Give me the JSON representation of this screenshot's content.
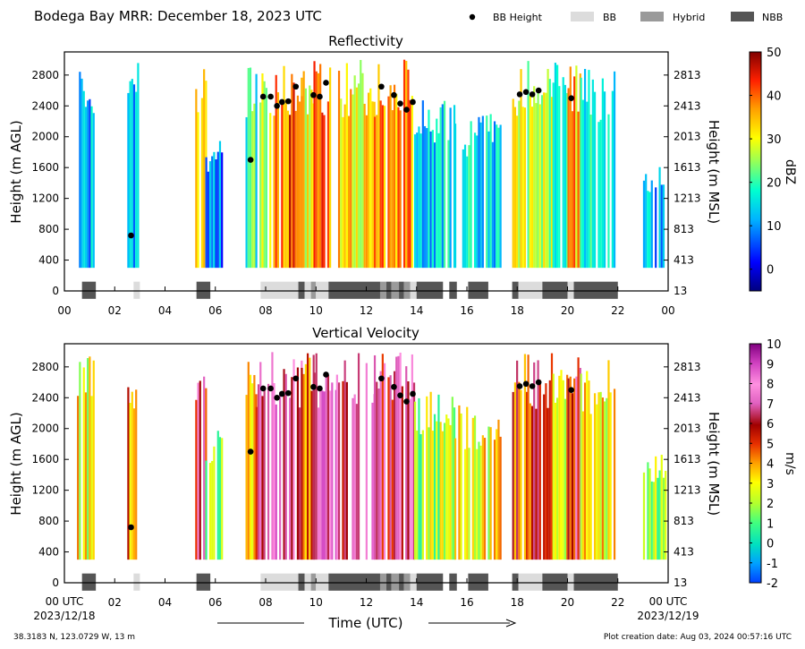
{
  "figure": {
    "title": "Bodega Bay MRR:  December 18, 2023 UTC",
    "legend": [
      {
        "label": "BB Height",
        "kind": "dot",
        "color": "#000000"
      },
      {
        "label": "BB",
        "kind": "box",
        "color": "#dcdcdc"
      },
      {
        "label": "Hybrid",
        "kind": "box",
        "color": "#9a9a9a"
      },
      {
        "label": "NBB",
        "kind": "box",
        "color": "#555555"
      }
    ],
    "xlabel": "Time (UTC)",
    "x_start_line1": "00 UTC",
    "x_start_line2": "2023/12/18",
    "x_end_line1": "00 UTC",
    "x_end_line2": "2023/12/19",
    "footer_left": "38.3183 N, 123.0729 W, 13 m",
    "footer_right": "Plot creation date: Aug 03, 2024 00:57:16 UTC"
  },
  "chart_data": [
    {
      "type": "heatmap",
      "title": "Reflectivity",
      "ylabel": "Height (m AGL)",
      "ylabel_right": "Height (m MSL)",
      "xlim": [
        0,
        24
      ],
      "ylim": [
        0,
        3100
      ],
      "x_ticks": [
        "00",
        "02",
        "04",
        "06",
        "08",
        "10",
        "12",
        "14",
        "16",
        "18",
        "20",
        "22",
        "00"
      ],
      "y_ticks_left": [
        0,
        400,
        800,
        1200,
        1600,
        2000,
        2400,
        2800
      ],
      "y_ticks_right": [
        "13",
        "413",
        "813",
        "1213",
        "1613",
        "2013",
        "2413",
        "2813"
      ],
      "colorbar": {
        "label": "dBZ",
        "min": -5,
        "max": 50,
        "ticks": [
          0,
          10,
          20,
          30,
          40,
          50
        ]
      },
      "bb_height": [
        {
          "x": 2.65,
          "y": 720
        },
        {
          "x": 7.4,
          "y": 1700
        },
        {
          "x": 7.9,
          "y": 2520
        },
        {
          "x": 8.2,
          "y": 2520
        },
        {
          "x": 8.45,
          "y": 2400
        },
        {
          "x": 8.65,
          "y": 2450
        },
        {
          "x": 8.9,
          "y": 2460
        },
        {
          "x": 9.2,
          "y": 2650
        },
        {
          "x": 9.9,
          "y": 2540
        },
        {
          "x": 10.15,
          "y": 2520
        },
        {
          "x": 10.4,
          "y": 2700
        },
        {
          "x": 12.6,
          "y": 2650
        },
        {
          "x": 13.1,
          "y": 2540
        },
        {
          "x": 13.35,
          "y": 2430
        },
        {
          "x": 13.6,
          "y": 2350
        },
        {
          "x": 13.85,
          "y": 2450
        },
        {
          "x": 18.1,
          "y": 2550
        },
        {
          "x": 18.35,
          "y": 2580
        },
        {
          "x": 18.6,
          "y": 2550
        },
        {
          "x": 18.85,
          "y": 2600
        },
        {
          "x": 20.15,
          "y": 2500
        }
      ],
      "classification": [
        {
          "start": 0.7,
          "end": 1.25,
          "class": "NBB"
        },
        {
          "start": 2.75,
          "end": 3.0,
          "class": "BB"
        },
        {
          "start": 5.25,
          "end": 5.8,
          "class": "NBB"
        },
        {
          "start": 7.8,
          "end": 9.3,
          "class": "BB"
        },
        {
          "start": 9.3,
          "end": 9.55,
          "class": "NBB"
        },
        {
          "start": 9.55,
          "end": 9.8,
          "class": "BB"
        },
        {
          "start": 9.8,
          "end": 10.0,
          "class": "Hybrid"
        },
        {
          "start": 10.0,
          "end": 10.5,
          "class": "BB"
        },
        {
          "start": 10.5,
          "end": 12.55,
          "class": "NBB"
        },
        {
          "start": 12.55,
          "end": 12.8,
          "class": "Hybrid"
        },
        {
          "start": 12.8,
          "end": 13.0,
          "class": "NBB"
        },
        {
          "start": 13.0,
          "end": 13.3,
          "class": "Hybrid"
        },
        {
          "start": 13.3,
          "end": 13.5,
          "class": "NBB"
        },
        {
          "start": 13.5,
          "end": 13.75,
          "class": "Hybrid"
        },
        {
          "start": 13.75,
          "end": 14.0,
          "class": "BB"
        },
        {
          "start": 14.0,
          "end": 15.05,
          "class": "NBB"
        },
        {
          "start": 15.3,
          "end": 15.6,
          "class": "NBB"
        },
        {
          "start": 16.05,
          "end": 16.85,
          "class": "NBB"
        },
        {
          "start": 17.8,
          "end": 18.05,
          "class": "NBB"
        },
        {
          "start": 18.05,
          "end": 19.0,
          "class": "BB"
        },
        {
          "start": 19.0,
          "end": 20.0,
          "class": "NBB"
        },
        {
          "start": 20.0,
          "end": 20.25,
          "class": "BB"
        },
        {
          "start": 20.25,
          "end": 22.0,
          "class": "NBB"
        }
      ],
      "echo_columns": [
        {
          "start": 0.5,
          "end": 1.2,
          "top": 3000,
          "level": 12
        },
        {
          "start": 2.5,
          "end": 2.9,
          "top": 3000,
          "level": 10
        },
        {
          "start": 5.2,
          "end": 5.6,
          "top": 3000,
          "level": 35
        },
        {
          "start": 5.6,
          "end": 6.3,
          "top": 2000,
          "level": 8
        },
        {
          "start": 7.2,
          "end": 7.6,
          "top": 3000,
          "level": 20
        },
        {
          "start": 7.6,
          "end": 8.3,
          "top": 3000,
          "level": 28
        },
        {
          "start": 8.3,
          "end": 9.4,
          "top": 3000,
          "level": 40
        },
        {
          "start": 9.4,
          "end": 9.9,
          "top": 3000,
          "level": 30
        },
        {
          "start": 9.9,
          "end": 10.8,
          "top": 3000,
          "level": 40
        },
        {
          "start": 10.8,
          "end": 12.3,
          "top": 3000,
          "level": 32
        },
        {
          "start": 12.3,
          "end": 13.9,
          "top": 3000,
          "level": 36
        },
        {
          "start": 13.9,
          "end": 15.5,
          "top": 2500,
          "level": 14
        },
        {
          "start": 15.5,
          "end": 17.3,
          "top": 2300,
          "level": 15
        },
        {
          "start": 17.8,
          "end": 18.4,
          "top": 3000,
          "level": 28
        },
        {
          "start": 18.4,
          "end": 19.4,
          "top": 3000,
          "level": 26
        },
        {
          "start": 19.4,
          "end": 20.0,
          "top": 3000,
          "level": 20
        },
        {
          "start": 20.0,
          "end": 20.5,
          "top": 3000,
          "level": 35
        },
        {
          "start": 20.5,
          "end": 21.9,
          "top": 2900,
          "level": 15
        },
        {
          "start": 23.0,
          "end": 23.9,
          "top": 1700,
          "level": 12
        }
      ]
    },
    {
      "type": "heatmap",
      "title": "Vertical Velocity",
      "ylabel": "Height (m AGL)",
      "ylabel_right": "Height (m MSL)",
      "xlim": [
        0,
        24
      ],
      "ylim": [
        0,
        3100
      ],
      "x_ticks": [
        "02",
        "04",
        "06",
        "08",
        "10",
        "12",
        "14",
        "16",
        "18",
        "20",
        "22"
      ],
      "y_ticks_left": [
        0,
        400,
        800,
        1200,
        1600,
        2000,
        2400,
        2800
      ],
      "y_ticks_right": [
        "13",
        "413",
        "813",
        "1213",
        "1613",
        "2013",
        "2413",
        "2813"
      ],
      "colorbar": {
        "label": "m/s",
        "min": -2,
        "max": 10,
        "ticks": [
          -2,
          -1,
          0,
          1,
          2,
          3,
          4,
          5,
          6,
          7,
          8,
          9,
          10
        ]
      },
      "bb_height": [
        {
          "x": 2.65,
          "y": 720
        },
        {
          "x": 7.4,
          "y": 1700
        },
        {
          "x": 7.9,
          "y": 2520
        },
        {
          "x": 8.2,
          "y": 2520
        },
        {
          "x": 8.45,
          "y": 2400
        },
        {
          "x": 8.65,
          "y": 2450
        },
        {
          "x": 8.9,
          "y": 2460
        },
        {
          "x": 9.2,
          "y": 2650
        },
        {
          "x": 9.9,
          "y": 2540
        },
        {
          "x": 10.15,
          "y": 2520
        },
        {
          "x": 10.4,
          "y": 2700
        },
        {
          "x": 12.6,
          "y": 2650
        },
        {
          "x": 13.1,
          "y": 2540
        },
        {
          "x": 13.35,
          "y": 2430
        },
        {
          "x": 13.6,
          "y": 2350
        },
        {
          "x": 13.85,
          "y": 2450
        },
        {
          "x": 18.1,
          "y": 2550
        },
        {
          "x": 18.35,
          "y": 2580
        },
        {
          "x": 18.6,
          "y": 2550
        },
        {
          "x": 18.85,
          "y": 2600
        },
        {
          "x": 20.15,
          "y": 2500
        }
      ],
      "classification": [
        {
          "start": 0.7,
          "end": 1.25,
          "class": "NBB"
        },
        {
          "start": 2.75,
          "end": 3.0,
          "class": "BB"
        },
        {
          "start": 5.25,
          "end": 5.8,
          "class": "NBB"
        },
        {
          "start": 7.8,
          "end": 9.3,
          "class": "BB"
        },
        {
          "start": 9.3,
          "end": 9.55,
          "class": "NBB"
        },
        {
          "start": 9.55,
          "end": 9.8,
          "class": "BB"
        },
        {
          "start": 9.8,
          "end": 10.0,
          "class": "Hybrid"
        },
        {
          "start": 10.0,
          "end": 10.5,
          "class": "BB"
        },
        {
          "start": 10.5,
          "end": 12.55,
          "class": "NBB"
        },
        {
          "start": 12.55,
          "end": 12.8,
          "class": "Hybrid"
        },
        {
          "start": 12.8,
          "end": 13.0,
          "class": "NBB"
        },
        {
          "start": 13.0,
          "end": 13.3,
          "class": "Hybrid"
        },
        {
          "start": 13.3,
          "end": 13.5,
          "class": "NBB"
        },
        {
          "start": 13.5,
          "end": 13.75,
          "class": "Hybrid"
        },
        {
          "start": 13.75,
          "end": 14.0,
          "class": "BB"
        },
        {
          "start": 14.0,
          "end": 15.05,
          "class": "NBB"
        },
        {
          "start": 15.3,
          "end": 15.6,
          "class": "NBB"
        },
        {
          "start": 16.05,
          "end": 16.85,
          "class": "NBB"
        },
        {
          "start": 17.8,
          "end": 18.05,
          "class": "NBB"
        },
        {
          "start": 18.05,
          "end": 19.0,
          "class": "BB"
        },
        {
          "start": 19.0,
          "end": 20.0,
          "class": "NBB"
        },
        {
          "start": 20.0,
          "end": 20.25,
          "class": "BB"
        },
        {
          "start": 20.25,
          "end": 22.0,
          "class": "NBB"
        }
      ],
      "velocity_columns": [
        {
          "start": 0.5,
          "end": 1.2,
          "top": 3000,
          "level": 3
        },
        {
          "start": 2.5,
          "end": 2.9,
          "top": 3000,
          "level": 4
        },
        {
          "start": 5.2,
          "end": 5.6,
          "top": 3000,
          "level": 6
        },
        {
          "start": 5.6,
          "end": 6.3,
          "top": 2000,
          "level": 2
        },
        {
          "start": 7.2,
          "end": 7.6,
          "top": 3000,
          "level": 3
        },
        {
          "start": 7.6,
          "end": 8.3,
          "top": 3000,
          "level": 6
        },
        {
          "start": 8.3,
          "end": 9.4,
          "top": 3000,
          "level": 7.5
        },
        {
          "start": 9.4,
          "end": 9.9,
          "top": 3000,
          "level": 5
        },
        {
          "start": 9.9,
          "end": 10.8,
          "top": 3000,
          "level": 7.5
        },
        {
          "start": 10.8,
          "end": 12.3,
          "top": 3000,
          "level": 7
        },
        {
          "start": 12.3,
          "end": 13.9,
          "top": 3000,
          "level": 6.5
        },
        {
          "start": 13.9,
          "end": 15.5,
          "top": 2500,
          "level": 2
        },
        {
          "start": 15.5,
          "end": 17.3,
          "top": 2300,
          "level": 3
        },
        {
          "start": 17.8,
          "end": 18.4,
          "top": 3000,
          "level": 5
        },
        {
          "start": 18.4,
          "end": 19.4,
          "top": 3000,
          "level": 5.5
        },
        {
          "start": 19.4,
          "end": 20.0,
          "top": 3000,
          "level": 3
        },
        {
          "start": 20.0,
          "end": 20.5,
          "top": 3000,
          "level": 6
        },
        {
          "start": 20.5,
          "end": 21.9,
          "top": 2900,
          "level": 3
        },
        {
          "start": 23.0,
          "end": 23.9,
          "top": 1700,
          "level": 2
        }
      ]
    }
  ]
}
